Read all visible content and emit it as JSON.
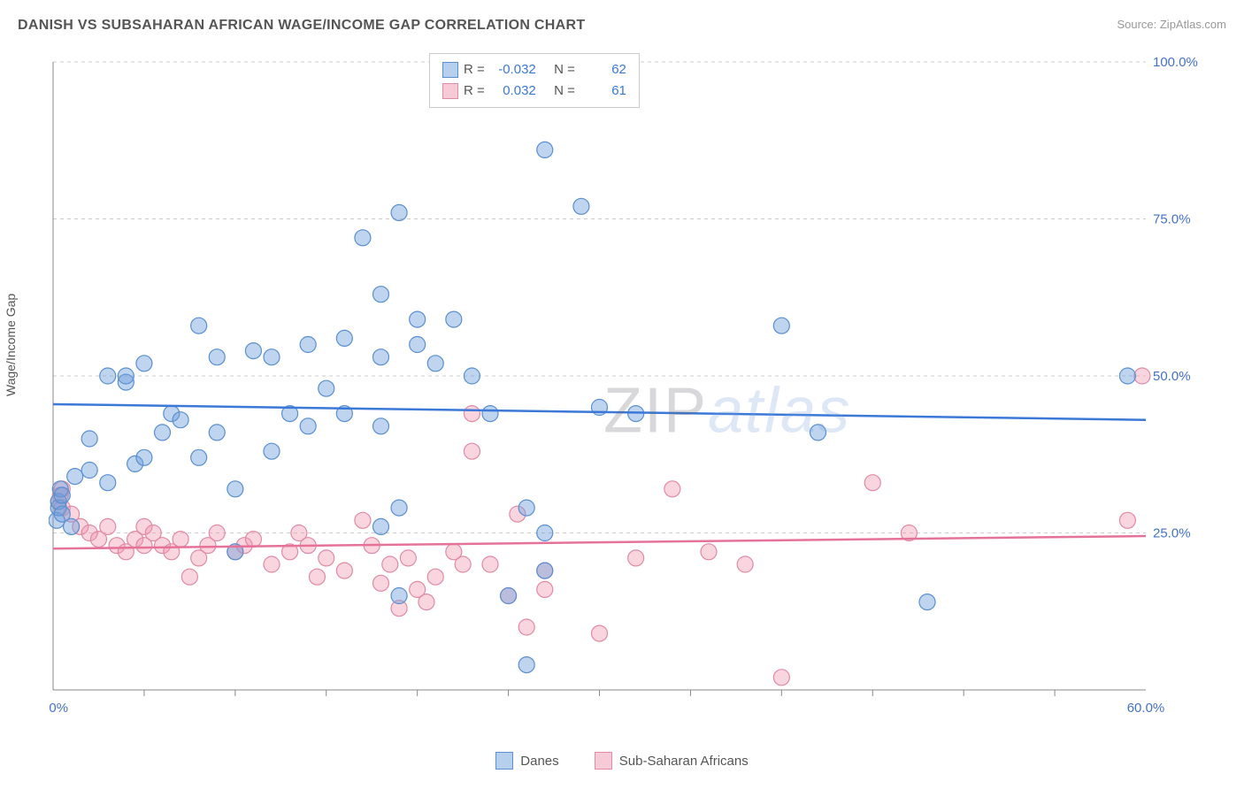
{
  "chart": {
    "type": "scatter",
    "title": "DANISH VS SUBSAHARAN AFRICAN WAGE/INCOME GAP CORRELATION CHART",
    "source_label": "Source: ",
    "source_name": "ZipAtlas.com",
    "watermark_part1": "ZIP",
    "watermark_part2": "atlas",
    "y_axis_label": "Wage/Income Gap",
    "background_color": "#ffffff",
    "grid_color": "#cccccc",
    "axis_color": "#888888",
    "xlim": [
      0,
      60
    ],
    "ylim": [
      0,
      100
    ],
    "x_tick_labels": {
      "0": "0.0%",
      "60": "60.0%"
    },
    "x_minor_ticks": [
      5,
      10,
      15,
      20,
      25,
      30,
      35,
      40,
      45,
      50,
      55
    ],
    "y_tick_labels": {
      "25": "25.0%",
      "50": "50.0%",
      "75": "75.0%",
      "100": "100.0%"
    },
    "marker_radius": 9,
    "series": {
      "danes": {
        "label": "Danes",
        "color_fill": "rgba(110,160,220,0.45)",
        "color_stroke": "#5a8fd0",
        "trend_color": "#3b78d8",
        "R": "-0.032",
        "N": "62",
        "trend": {
          "y_at_x0": 45.5,
          "y_at_x60": 43.0
        },
        "points": [
          [
            0.2,
            27
          ],
          [
            0.3,
            29
          ],
          [
            0.3,
            30
          ],
          [
            0.4,
            32
          ],
          [
            0.5,
            28
          ],
          [
            0.5,
            31
          ],
          [
            1,
            26
          ],
          [
            1.2,
            34
          ],
          [
            2,
            35
          ],
          [
            2,
            40
          ],
          [
            3,
            33
          ],
          [
            3,
            50
          ],
          [
            4,
            49
          ],
          [
            4,
            50
          ],
          [
            4.5,
            36
          ],
          [
            5,
            52
          ],
          [
            5,
            37
          ],
          [
            6,
            41
          ],
          [
            6.5,
            44
          ],
          [
            7,
            43
          ],
          [
            8,
            58
          ],
          [
            8,
            37
          ],
          [
            9,
            53
          ],
          [
            9,
            41
          ],
          [
            10,
            22
          ],
          [
            10,
            32
          ],
          [
            11,
            54
          ],
          [
            12,
            38
          ],
          [
            12,
            53
          ],
          [
            13,
            44
          ],
          [
            14,
            42
          ],
          [
            14,
            55
          ],
          [
            15,
            48
          ],
          [
            16,
            56
          ],
          [
            16,
            44
          ],
          [
            17,
            72
          ],
          [
            18,
            63
          ],
          [
            18,
            53
          ],
          [
            18,
            42
          ],
          [
            18,
            26
          ],
          [
            19,
            76
          ],
          [
            19,
            29
          ],
          [
            19,
            15
          ],
          [
            20,
            59
          ],
          [
            20,
            55
          ],
          [
            21,
            52
          ],
          [
            22,
            59
          ],
          [
            23,
            50
          ],
          [
            24,
            44
          ],
          [
            25,
            15
          ],
          [
            26,
            29
          ],
          [
            26,
            4
          ],
          [
            27,
            86
          ],
          [
            27,
            19
          ],
          [
            27,
            25
          ],
          [
            29,
            77
          ],
          [
            30,
            45
          ],
          [
            32,
            44
          ],
          [
            40,
            58
          ],
          [
            42,
            41
          ],
          [
            48,
            14
          ],
          [
            59,
            50
          ]
        ]
      },
      "subsaharan": {
        "label": "Sub-Saharan Africans",
        "color_fill": "rgba(240,150,175,0.4)",
        "color_stroke": "#e08aa5",
        "trend_color": "#e57399",
        "R": "0.032",
        "N": "61",
        "trend": {
          "y_at_x0": 22.5,
          "y_at_x60": 24.5
        },
        "points": [
          [
            0.3,
            30
          ],
          [
            0.4,
            31
          ],
          [
            0.5,
            29
          ],
          [
            0.5,
            32
          ],
          [
            1,
            28
          ],
          [
            1.5,
            26
          ],
          [
            2,
            25
          ],
          [
            2.5,
            24
          ],
          [
            3,
            26
          ],
          [
            3.5,
            23
          ],
          [
            4,
            22
          ],
          [
            4.5,
            24
          ],
          [
            5,
            23
          ],
          [
            5,
            26
          ],
          [
            5.5,
            25
          ],
          [
            6,
            23
          ],
          [
            6.5,
            22
          ],
          [
            7,
            24
          ],
          [
            7.5,
            18
          ],
          [
            8,
            21
          ],
          [
            8.5,
            23
          ],
          [
            9,
            25
          ],
          [
            10,
            22
          ],
          [
            10.5,
            23
          ],
          [
            11,
            24
          ],
          [
            12,
            20
          ],
          [
            13,
            22
          ],
          [
            13.5,
            25
          ],
          [
            14,
            23
          ],
          [
            14.5,
            18
          ],
          [
            15,
            21
          ],
          [
            16,
            19
          ],
          [
            17,
            27
          ],
          [
            17.5,
            23
          ],
          [
            18,
            17
          ],
          [
            18.5,
            20
          ],
          [
            19,
            13
          ],
          [
            19.5,
            21
          ],
          [
            20,
            16
          ],
          [
            20.5,
            14
          ],
          [
            21,
            18
          ],
          [
            22,
            22
          ],
          [
            22.5,
            20
          ],
          [
            23,
            38
          ],
          [
            23,
            44
          ],
          [
            24,
            20
          ],
          [
            25,
            15
          ],
          [
            25.5,
            28
          ],
          [
            26,
            10
          ],
          [
            27,
            16
          ],
          [
            27,
            19
          ],
          [
            30,
            9
          ],
          [
            32,
            21
          ],
          [
            34,
            32
          ],
          [
            36,
            22
          ],
          [
            38,
            20
          ],
          [
            40,
            2
          ],
          [
            45,
            33
          ],
          [
            47,
            25
          ],
          [
            59,
            27
          ],
          [
            59.8,
            50
          ]
        ]
      }
    },
    "stat_legend": {
      "R_label": "R =",
      "N_label": "N ="
    }
  }
}
